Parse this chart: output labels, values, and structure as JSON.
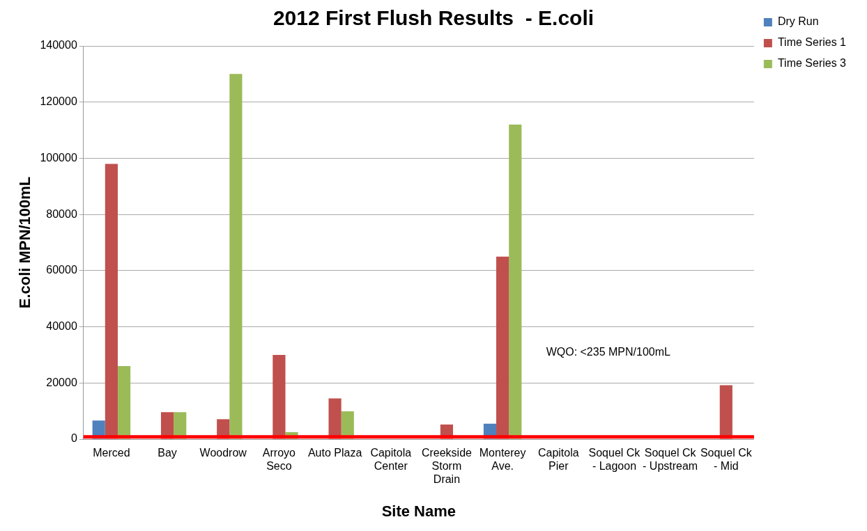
{
  "chart_data": {
    "type": "bar",
    "title": "2012 First Flush Results  - E.coli",
    "xlabel": "Site Name",
    "ylabel": "E.coli MPN/100mL",
    "categories": [
      "Merced",
      "Bay",
      "Woodrow",
      "Arroyo Seco",
      "Auto Plaza",
      "Capitola Center",
      "Creekside Storm Drain",
      "Monterey Ave.",
      "Capitola Pier",
      "Soquel Ck - Lagoon",
      "Soquel Ck - Upstream",
      "Soquel Ck - Mid"
    ],
    "series": [
      {
        "name": "Dry Run",
        "color": "#4f81bd",
        "values": [
          6600,
          null,
          null,
          null,
          null,
          null,
          null,
          5500,
          null,
          null,
          null,
          null
        ]
      },
      {
        "name": "Time Series 1",
        "color": "#c0504d",
        "values": [
          98000,
          9600,
          7100,
          30000,
          14500,
          null,
          5200,
          65000,
          null,
          null,
          null,
          19200
        ]
      },
      {
        "name": "Time Series 3",
        "color": "#9bbb59",
        "values": [
          26000,
          9600,
          130000,
          2500,
          9900,
          null,
          null,
          112000,
          null,
          null,
          null,
          null
        ]
      }
    ],
    "ylim": [
      0,
      140000
    ],
    "yticks": [
      0,
      20000,
      40000,
      60000,
      80000,
      100000,
      120000,
      140000
    ],
    "grid": "y",
    "legend": "top right",
    "ref_lines": [
      {
        "axis": "y",
        "value": 800,
        "color": "#ff0000"
      }
    ],
    "annotations": [
      "WQO: <235 MPN/100mL"
    ]
  }
}
